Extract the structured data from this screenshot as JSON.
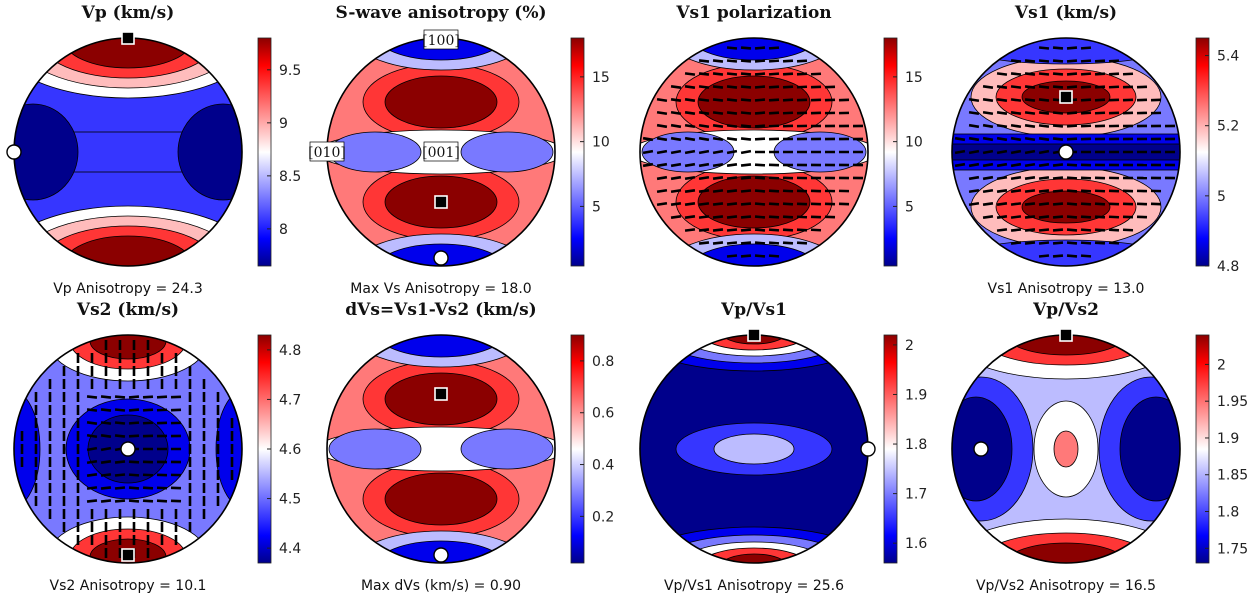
{
  "chart_data": [
    {
      "type": "heatmap",
      "title": "Vp (km/s)",
      "caption": "Vp Anisotropy = 24.3",
      "colorbar": {
        "ticks": [
          "9.5",
          "9",
          "8.5",
          "8"
        ],
        "tick_values": [
          9.5,
          9.0,
          8.5,
          8.0
        ],
        "range": [
          7.65,
          9.8
        ]
      },
      "markers": [
        {
          "type": "max",
          "shape": "square",
          "position": "top-edge"
        },
        {
          "type": "min",
          "shape": "circle",
          "position": "left-edge"
        }
      ]
    },
    {
      "type": "heatmap",
      "title": "S-wave anisotropy (%)",
      "caption": "Max Vs Anisotropy = 18.0",
      "colorbar": {
        "ticks": [
          "15",
          "10",
          "5"
        ],
        "tick_values": [
          15,
          10,
          5
        ],
        "range": [
          0.4,
          18.0
        ]
      },
      "markers": [
        {
          "type": "max",
          "shape": "square",
          "position": "lower-center"
        },
        {
          "type": "min",
          "shape": "circle",
          "position": "bottom-edge"
        }
      ],
      "axis_labels": [
        "[100]",
        "[010]",
        "[001]"
      ]
    },
    {
      "type": "heatmap",
      "title": "Vs1 polarization",
      "caption": "",
      "colorbar": {
        "ticks": [
          "15",
          "10",
          "5"
        ],
        "tick_values": [
          15,
          10,
          5
        ],
        "range": [
          0.4,
          18.0
        ]
      },
      "markers": [],
      "polarization_ticks": true
    },
    {
      "type": "heatmap",
      "title": "Vs1 (km/s)",
      "caption": "Vs1 Anisotropy = 13.0",
      "colorbar": {
        "ticks": [
          "5.4",
          "5.2",
          "5",
          "4.8"
        ],
        "tick_values": [
          5.4,
          5.2,
          5.0,
          4.8
        ],
        "range": [
          4.8,
          5.45
        ]
      },
      "markers": [
        {
          "type": "max",
          "shape": "square",
          "position": "upper-center"
        },
        {
          "type": "min",
          "shape": "circle",
          "position": "center"
        }
      ],
      "polarization_ticks": true
    },
    {
      "type": "heatmap",
      "title": "Vs2 (km/s)",
      "caption": "Vs2 Anisotropy = 10.1",
      "colorbar": {
        "ticks": [
          "4.8",
          "4.7",
          "4.6",
          "4.5",
          "4.4"
        ],
        "tick_values": [
          4.8,
          4.7,
          4.6,
          4.5,
          4.4
        ],
        "range": [
          4.37,
          4.83
        ]
      },
      "markers": [
        {
          "type": "max",
          "shape": "square",
          "position": "bottom-edge"
        },
        {
          "type": "min",
          "shape": "circle",
          "position": "center"
        }
      ],
      "polarization_ticks": true
    },
    {
      "type": "heatmap",
      "title": "dVs=Vs1-Vs2 (km/s)",
      "caption": "Max dVs (km/s) = 0.90",
      "colorbar": {
        "ticks": [
          "0.8",
          "0.6",
          "0.4",
          "0.2"
        ],
        "tick_values": [
          0.8,
          0.6,
          0.4,
          0.2
        ],
        "range": [
          0.02,
          0.9
        ]
      },
      "markers": [
        {
          "type": "max",
          "shape": "square",
          "position": "upper-center"
        },
        {
          "type": "min",
          "shape": "circle",
          "position": "bottom-edge"
        }
      ]
    },
    {
      "type": "heatmap",
      "title": "Vp/Vs1",
      "caption": "Vp/Vs1 Anisotropy = 25.6",
      "colorbar": {
        "ticks": [
          "2",
          "1.9",
          "1.8",
          "1.7",
          "1.6"
        ],
        "tick_values": [
          2.0,
          1.9,
          1.8,
          1.7,
          1.6
        ],
        "range": [
          1.56,
          2.02
        ]
      },
      "markers": [
        {
          "type": "max",
          "shape": "square",
          "position": "top-edge"
        },
        {
          "type": "min",
          "shape": "circle",
          "position": "right-edge"
        }
      ]
    },
    {
      "type": "heatmap",
      "title": "Vp/Vs2",
      "caption": "Vp/Vs2 Anisotropy = 16.5",
      "colorbar": {
        "ticks": [
          "2",
          "1.95",
          "1.9",
          "1.85",
          "1.8",
          "1.75"
        ],
        "tick_values": [
          2.0,
          1.95,
          1.9,
          1.85,
          1.8,
          1.75
        ],
        "range": [
          1.73,
          2.04
        ]
      },
      "markers": [
        {
          "type": "max",
          "shape": "square",
          "position": "top-edge"
        },
        {
          "type": "min",
          "shape": "circle",
          "position": "left-center"
        }
      ]
    }
  ],
  "colors": {
    "low": "#00008b",
    "mid": "#ffffff",
    "high": "#8b0000",
    "outline": "#000000"
  }
}
